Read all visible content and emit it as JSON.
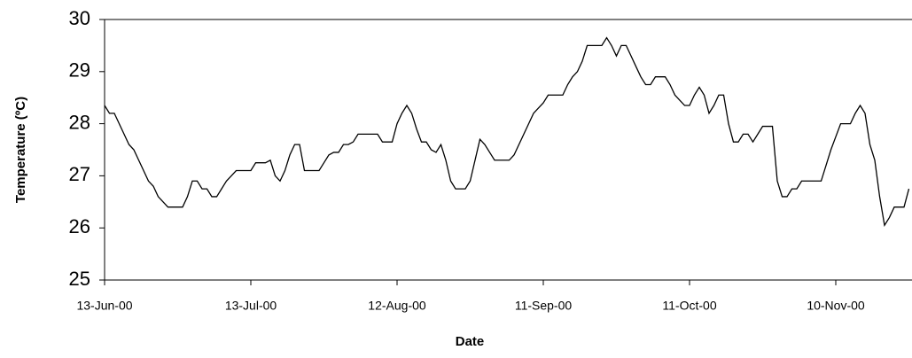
{
  "chart_data": {
    "type": "line",
    "x_label": "Date",
    "y_label": "Temperature (ºC)",
    "xlim": [
      "13-Jun-00",
      "26-Nov-00"
    ],
    "xticks": [
      "13-Jun-00",
      "13-Jul-00",
      "12-Aug-00",
      "11-Sep-00",
      "11-Oct-00",
      "10-Nov-00"
    ],
    "ylim": [
      25,
      30
    ],
    "yticks": [
      25,
      26,
      27,
      28,
      29,
      30
    ],
    "grid": false,
    "x": [
      "13-Jun-00",
      "14-Jun-00",
      "15-Jun-00",
      "16-Jun-00",
      "17-Jun-00",
      "18-Jun-00",
      "19-Jun-00",
      "20-Jun-00",
      "21-Jun-00",
      "22-Jun-00",
      "23-Jun-00",
      "24-Jun-00",
      "25-Jun-00",
      "26-Jun-00",
      "27-Jun-00",
      "28-Jun-00",
      "29-Jun-00",
      "30-Jun-00",
      "1-Jul-00",
      "2-Jul-00",
      "3-Jul-00",
      "4-Jul-00",
      "5-Jul-00",
      "6-Jul-00",
      "7-Jul-00",
      "8-Jul-00",
      "9-Jul-00",
      "10-Jul-00",
      "11-Jul-00",
      "12-Jul-00",
      "13-Jul-00",
      "14-Jul-00",
      "15-Jul-00",
      "16-Jul-00",
      "17-Jul-00",
      "18-Jul-00",
      "19-Jul-00",
      "20-Jul-00",
      "21-Jul-00",
      "22-Jul-00",
      "23-Jul-00",
      "24-Jul-00",
      "25-Jul-00",
      "26-Jul-00",
      "27-Jul-00",
      "28-Jul-00",
      "29-Jul-00",
      "30-Jul-00",
      "31-Jul-00",
      "1-Aug-00",
      "2-Aug-00",
      "3-Aug-00",
      "4-Aug-00",
      "5-Aug-00",
      "6-Aug-00",
      "7-Aug-00",
      "8-Aug-00",
      "9-Aug-00",
      "10-Aug-00",
      "11-Aug-00",
      "12-Aug-00",
      "13-Aug-00",
      "14-Aug-00",
      "15-Aug-00",
      "16-Aug-00",
      "17-Aug-00",
      "18-Aug-00",
      "19-Aug-00",
      "20-Aug-00",
      "21-Aug-00",
      "22-Aug-00",
      "23-Aug-00",
      "24-Aug-00",
      "25-Aug-00",
      "26-Aug-00",
      "27-Aug-00",
      "28-Aug-00",
      "29-Aug-00",
      "30-Aug-00",
      "31-Aug-00",
      "1-Sep-00",
      "2-Sep-00",
      "3-Sep-00",
      "4-Sep-00",
      "5-Sep-00",
      "6-Sep-00",
      "7-Sep-00",
      "8-Sep-00",
      "9-Sep-00",
      "10-Sep-00",
      "11-Sep-00",
      "12-Sep-00",
      "13-Sep-00",
      "14-Sep-00",
      "15-Sep-00",
      "16-Sep-00",
      "17-Sep-00",
      "18-Sep-00",
      "19-Sep-00",
      "20-Sep-00",
      "21-Sep-00",
      "22-Sep-00",
      "23-Sep-00",
      "24-Sep-00",
      "25-Sep-00",
      "26-Sep-00",
      "27-Sep-00",
      "28-Sep-00",
      "29-Sep-00",
      "30-Sep-00",
      "1-Oct-00",
      "2-Oct-00",
      "3-Oct-00",
      "4-Oct-00",
      "5-Oct-00",
      "6-Oct-00",
      "7-Oct-00",
      "8-Oct-00",
      "9-Oct-00",
      "10-Oct-00",
      "11-Oct-00",
      "12-Oct-00",
      "13-Oct-00",
      "14-Oct-00",
      "15-Oct-00",
      "16-Oct-00",
      "17-Oct-00",
      "18-Oct-00",
      "19-Oct-00",
      "20-Oct-00",
      "21-Oct-00",
      "22-Oct-00",
      "23-Oct-00",
      "24-Oct-00",
      "25-Oct-00",
      "26-Oct-00",
      "27-Oct-00",
      "28-Oct-00",
      "29-Oct-00",
      "30-Oct-00",
      "31-Oct-00",
      "1-Nov-00",
      "2-Nov-00",
      "3-Nov-00",
      "4-Nov-00",
      "5-Nov-00",
      "6-Nov-00",
      "7-Nov-00",
      "8-Nov-00",
      "9-Nov-00",
      "10-Nov-00",
      "11-Nov-00",
      "12-Nov-00",
      "13-Nov-00",
      "14-Nov-00",
      "15-Nov-00",
      "16-Nov-00",
      "17-Nov-00",
      "18-Nov-00",
      "19-Nov-00",
      "20-Nov-00",
      "21-Nov-00",
      "22-Nov-00",
      "23-Nov-00",
      "24-Nov-00",
      "25-Nov-00"
    ],
    "series": [
      {
        "color": "#000000",
        "values": [
          28.35,
          28.2,
          28.2,
          28.0,
          27.8,
          27.6,
          27.5,
          27.3,
          27.1,
          26.9,
          26.8,
          26.6,
          26.5,
          26.4,
          26.4,
          26.4,
          26.4,
          26.6,
          26.9,
          26.9,
          26.75,
          26.75,
          26.6,
          26.6,
          26.75,
          26.9,
          27.0,
          27.1,
          27.1,
          27.1,
          27.1,
          27.25,
          27.25,
          27.25,
          27.3,
          27.0,
          26.9,
          27.1,
          27.4,
          27.6,
          27.6,
          27.1,
          27.1,
          27.1,
          27.1,
          27.25,
          27.4,
          27.45,
          27.45,
          27.6,
          27.6,
          27.65,
          27.8,
          27.8,
          27.8,
          27.8,
          27.8,
          27.65,
          27.65,
          27.65,
          28.0,
          28.2,
          28.35,
          28.2,
          27.9,
          27.65,
          27.65,
          27.5,
          27.45,
          27.6,
          27.3,
          26.9,
          26.75,
          26.75,
          26.75,
          26.9,
          27.3,
          27.7,
          27.6,
          27.45,
          27.3,
          27.3,
          27.3,
          27.3,
          27.4,
          27.6,
          27.8,
          28.0,
          28.2,
          28.3,
          28.4,
          28.55,
          28.55,
          28.55,
          28.55,
          28.75,
          28.9,
          29.0,
          29.2,
          29.5,
          29.5,
          29.5,
          29.5,
          29.65,
          29.5,
          29.3,
          29.5,
          29.5,
          29.3,
          29.1,
          28.9,
          28.75,
          28.75,
          28.9,
          28.9,
          28.9,
          28.75,
          28.55,
          28.45,
          28.35,
          28.35,
          28.55,
          28.7,
          28.55,
          28.2,
          28.35,
          28.55,
          28.55,
          28.0,
          27.65,
          27.65,
          27.8,
          27.8,
          27.65,
          27.8,
          27.95,
          27.95,
          27.95,
          26.9,
          26.6,
          26.6,
          26.75,
          26.75,
          26.9,
          26.9,
          26.9,
          26.9,
          26.9,
          27.2,
          27.5,
          27.75,
          28.0,
          28.0,
          28.0,
          28.2,
          28.35,
          28.2,
          27.6,
          27.3,
          26.6,
          26.05,
          26.2,
          26.4,
          26.4,
          26.4,
          26.75
        ]
      }
    ]
  }
}
